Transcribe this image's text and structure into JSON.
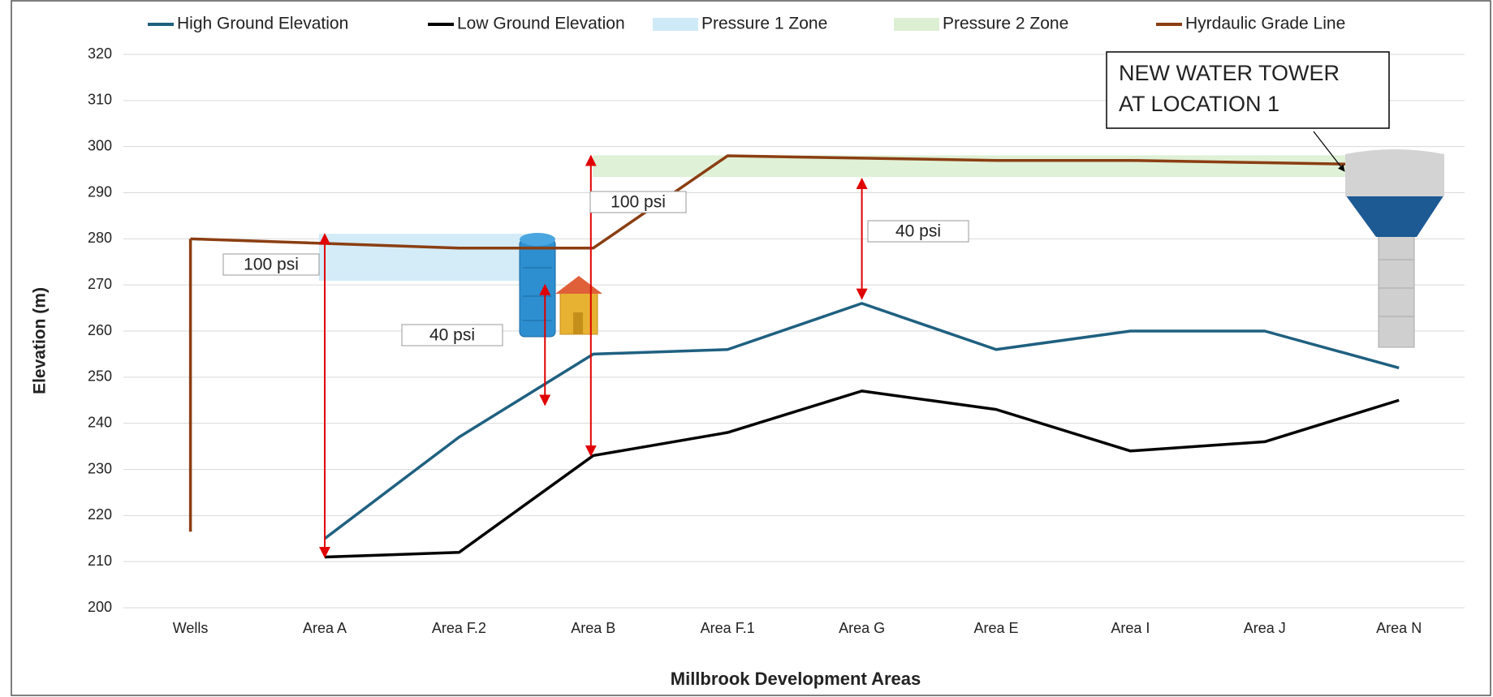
{
  "chart_data": {
    "type": "line",
    "x_label": "Millbrook Development Areas",
    "y_label": "Elevation (m)",
    "categories": [
      "Wells",
      "Area A",
      "Area F.2",
      "Area B",
      "Area F.1",
      "Area G",
      "Area E",
      "Area I",
      "Area J",
      "Area N"
    ],
    "ylim": [
      200,
      320
    ],
    "yticks": [
      200,
      210,
      220,
      230,
      240,
      250,
      260,
      270,
      280,
      290,
      300,
      310,
      320
    ],
    "grid": true,
    "legend": "top",
    "series": [
      {
        "name": "High Ground Elevation",
        "color": "#1f6080",
        "values": [
          null,
          215,
          237,
          255,
          256,
          266,
          256,
          260,
          260,
          252
        ]
      },
      {
        "name": "Low Ground Elevation",
        "color": "#000000",
        "values": [
          null,
          211,
          212,
          233,
          238,
          247,
          243,
          234,
          236,
          245
        ]
      },
      {
        "name": "Pressure 1 Zone",
        "color": "#cfeaf7",
        "type": "zone",
        "range": [
          271,
          281
        ]
      },
      {
        "name": "Pressure 2 Zone",
        "color": "#dcefd3",
        "type": "zone",
        "range": [
          293.5,
          298
        ]
      },
      {
        "name": "Hyrdaulic Grade Line",
        "color": "#8b3e12",
        "values": [
          280,
          279,
          278,
          278,
          298,
          297.5,
          297,
          297,
          296.5,
          296
        ]
      }
    ],
    "well_depth": 216.5,
    "annotations": [
      {
        "label": "100 psi",
        "from": 211,
        "to": 281
      },
      {
        "label": "40 psi",
        "from": 244,
        "to": 270
      },
      {
        "label": "100 psi",
        "from": 233,
        "to": 298
      },
      {
        "label": "40 psi",
        "from": 267,
        "to": 293
      }
    ],
    "callout": [
      "NEW WATER TOWER",
      "AT LOCATION 1"
    ]
  }
}
